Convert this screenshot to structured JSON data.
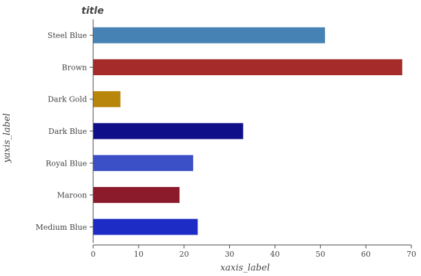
{
  "chart_data": {
    "type": "bar",
    "orientation": "horizontal",
    "title": "title",
    "xlabel": "xaxis_label",
    "ylabel": "yaxis_label",
    "xlim": [
      0,
      70
    ],
    "xticks": [
      0,
      10,
      20,
      30,
      40,
      50,
      60,
      70
    ],
    "grid": false,
    "categories": [
      "Medium Blue",
      "Maroon",
      "Royal Blue",
      "Dark Blue",
      "Dark Gold",
      "Brown",
      "Steel Blue"
    ],
    "values": [
      23,
      19,
      22,
      33,
      6,
      68,
      51
    ],
    "colors": [
      "#1c2cc4",
      "#8b1a2b",
      "#3b4fc7",
      "#0f0f8a",
      "#b8860b",
      "#a52a2a",
      "#4682b4"
    ]
  }
}
